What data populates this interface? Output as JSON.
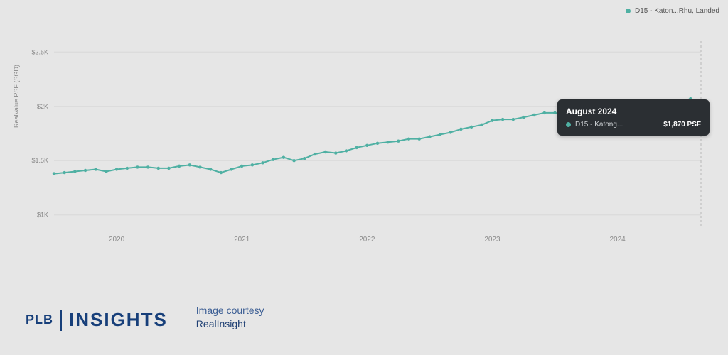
{
  "chart": {
    "type": "line",
    "series_name": "D15 - Katon...Rhu, Landed",
    "series_short": "D15 - Katong...",
    "line_color": "#4fb0a3",
    "marker_color": "#4fb0a3",
    "marker_fill": "#4fb0a3",
    "marker_radius": 2.2,
    "line_width": 2,
    "grid_color": "#d8d8d8",
    "axis_text_color": "#8a8a8a",
    "background_color": "#e6e6e6",
    "y_label": "RealValue PSF (SGD)",
    "y_ticks": [
      1000,
      1500,
      2000,
      2500
    ],
    "y_tick_labels": [
      "$1K",
      "$1.5K",
      "$2K",
      "$2.5K"
    ],
    "ylim": [
      900,
      2600
    ],
    "x_tick_labels": [
      "2020",
      "2021",
      "2022",
      "2023",
      "2024"
    ],
    "x_tick_indices": [
      6,
      18,
      30,
      42,
      54
    ],
    "n_points": 63,
    "values": [
      1380,
      1390,
      1400,
      1410,
      1420,
      1400,
      1420,
      1430,
      1440,
      1440,
      1430,
      1430,
      1450,
      1460,
      1440,
      1420,
      1390,
      1420,
      1450,
      1460,
      1480,
      1510,
      1530,
      1500,
      1520,
      1560,
      1580,
      1570,
      1590,
      1620,
      1640,
      1660,
      1670,
      1680,
      1700,
      1700,
      1720,
      1740,
      1760,
      1790,
      1810,
      1830,
      1870,
      1880,
      1880,
      1900,
      1920,
      1940,
      1940,
      1920,
      1910,
      1900,
      1910,
      1900,
      1910,
      1930,
      1960,
      2020,
      2000,
      1990,
      2040,
      2070,
      1870
    ],
    "highlight_index": 62,
    "highlight_marker_radius": 5,
    "vline_color": "#b8b8b8",
    "tooltip": {
      "title": "August 2024",
      "series": "D15 - Katong...",
      "value": "$1,870 PSF",
      "bg": "#2b2f33",
      "dot": "#4fb0a3"
    },
    "legend": {
      "label": "D15 - Katon...Rhu, Landed",
      "dot": "#4fb0a3"
    }
  },
  "brand": {
    "plb": "PLB",
    "insights": "INSIGHTS",
    "color": "#173f7a"
  },
  "credit": {
    "line1": "Image courtesy",
    "line2": "RealInsight"
  }
}
